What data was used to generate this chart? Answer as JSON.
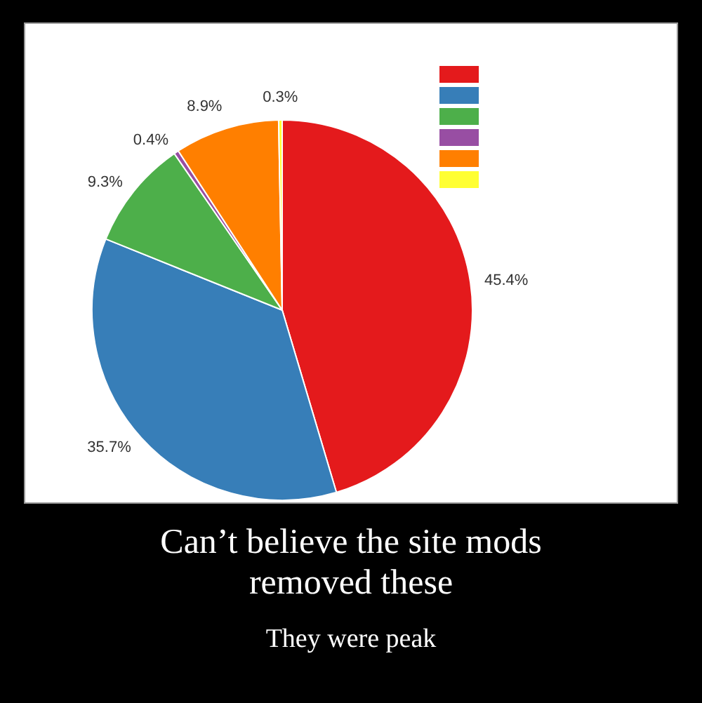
{
  "chart_data": {
    "type": "pie",
    "title": "Can’t believe the site mods removed these",
    "subtitle": "They were peak",
    "categories": [
      null,
      null,
      null,
      null,
      null,
      null
    ],
    "values": [
      45.4,
      35.7,
      9.3,
      0.4,
      8.9,
      0.3
    ],
    "value_labels": [
      "45.4%",
      "35.7%",
      "9.3%",
      "0.4%",
      "8.9%",
      "0.3%"
    ],
    "colors": [
      "#e41a1c",
      "#377eb8",
      "#4daf4a",
      "#984ea3",
      "#ff7f00",
      "#ffff33"
    ]
  }
}
